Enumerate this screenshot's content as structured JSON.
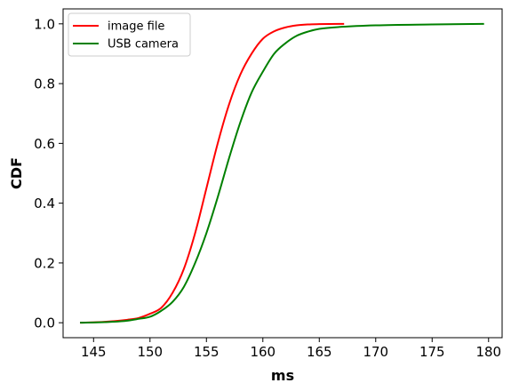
{
  "chart_data": {
    "type": "line",
    "xlabel": "ms",
    "ylabel": "CDF",
    "xlim": [
      142.3,
      181.2
    ],
    "ylim": [
      -0.05,
      1.05
    ],
    "xticks": [
      145,
      150,
      155,
      160,
      165,
      170,
      175,
      180
    ],
    "yticks": [
      0.0,
      0.2,
      0.4,
      0.6,
      0.8,
      1.0
    ],
    "xtick_labels": [
      "145",
      "150",
      "155",
      "160",
      "165",
      "170",
      "175",
      "180"
    ],
    "ytick_labels": [
      "0.0",
      "0.2",
      "0.4",
      "0.6",
      "0.8",
      "1.0"
    ],
    "grid": false,
    "legend": "top-left",
    "series": [
      {
        "name": "image file",
        "color": "#ff0000",
        "x": [
          143.8,
          146,
          148,
          149,
          150,
          151,
          152,
          153,
          154,
          155,
          156,
          157,
          158,
          159,
          160,
          161,
          162,
          163,
          164,
          165,
          167.2
        ],
        "y": [
          0.0,
          0.003,
          0.01,
          0.016,
          0.03,
          0.05,
          0.1,
          0.18,
          0.3,
          0.45,
          0.6,
          0.73,
          0.83,
          0.9,
          0.95,
          0.975,
          0.988,
          0.995,
          0.998,
          0.999,
          1.0
        ]
      },
      {
        "name": "USB camera",
        "color": "#008000",
        "x": [
          143.8,
          146,
          148,
          149,
          150,
          151,
          152,
          153,
          154,
          155,
          156,
          157,
          158,
          159,
          160,
          161,
          162,
          163,
          164,
          165,
          167,
          170,
          175,
          179.6
        ],
        "y": [
          0.0,
          0.002,
          0.007,
          0.013,
          0.02,
          0.04,
          0.07,
          0.12,
          0.2,
          0.3,
          0.42,
          0.55,
          0.67,
          0.77,
          0.84,
          0.9,
          0.935,
          0.96,
          0.974,
          0.983,
          0.99,
          0.995,
          0.998,
          1.0
        ]
      }
    ]
  }
}
